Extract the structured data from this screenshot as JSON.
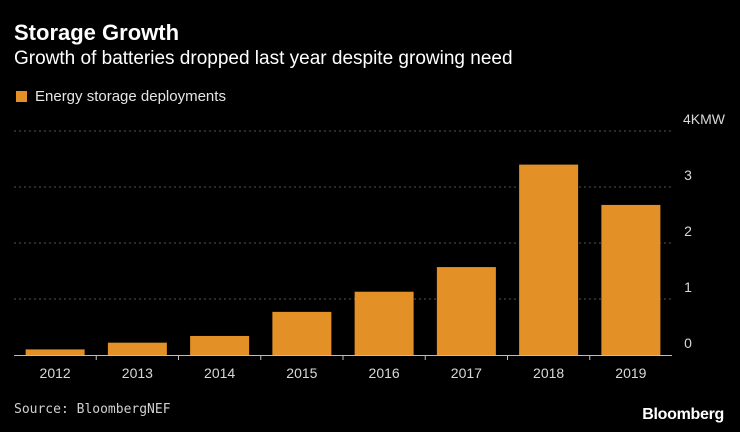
{
  "header": {
    "title": "Storage Growth",
    "subtitle": "Growth of batteries dropped last year despite growing need"
  },
  "legend": {
    "label": "Energy storage deployments",
    "color": "#e39127"
  },
  "chart_data": {
    "type": "bar",
    "title": "Storage Growth",
    "subtitle": "Growth of batteries dropped last year despite growing need",
    "categories": [
      "2012",
      "2013",
      "2014",
      "2015",
      "2016",
      "2017",
      "2018",
      "2019"
    ],
    "series": [
      {
        "name": "Energy storage deployments",
        "values": [
          0.1,
          0.22,
          0.34,
          0.77,
          1.13,
          1.57,
          3.4,
          2.68
        ]
      }
    ],
    "ylim": [
      0,
      4
    ],
    "yticks": [
      0,
      1,
      2,
      3,
      4
    ],
    "ytick_labels": [
      "0",
      "1",
      "2",
      "3",
      "4KMW"
    ],
    "yaxis_position": "right",
    "grid": true,
    "xlabel": "",
    "ylabel": "",
    "bar_color": "#e39127",
    "grid_color": "#555555"
  },
  "footer": {
    "source": "Source: BloombergNEF",
    "brand": "Bloomberg"
  }
}
